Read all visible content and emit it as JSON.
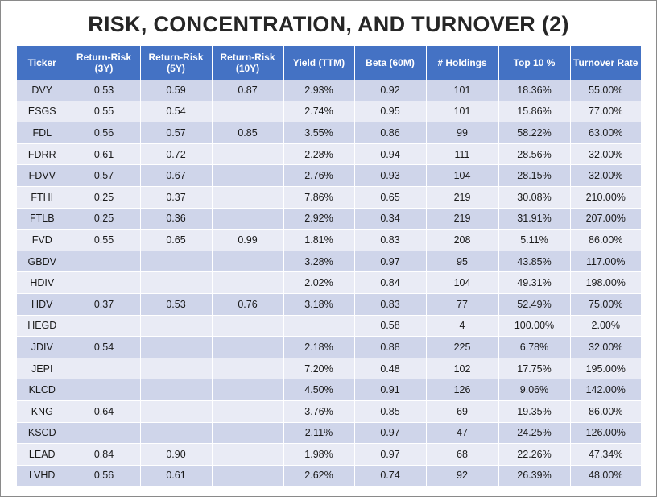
{
  "title": "RISK, CONCENTRATION, AND TURNOVER (2)",
  "table": {
    "headers": [
      {
        "line1": "Ticker",
        "line2": ""
      },
      {
        "line1": "Return-Risk",
        "line2": "(3Y)"
      },
      {
        "line1": "Return-Risk",
        "line2": "(5Y)"
      },
      {
        "line1": "Return-Risk",
        "line2": "(10Y)"
      },
      {
        "line1": "Yield (TTM)",
        "line2": ""
      },
      {
        "line1": "Beta (60M)",
        "line2": ""
      },
      {
        "line1": "# Holdings",
        "line2": ""
      },
      {
        "line1": "Top 10 %",
        "line2": ""
      },
      {
        "line1": "Turnover Rate",
        "line2": ""
      }
    ],
    "rows": [
      [
        "DVY",
        "0.53",
        "0.59",
        "0.87",
        "2.93%",
        "0.92",
        "101",
        "18.36%",
        "55.00%"
      ],
      [
        "ESGS",
        "0.55",
        "0.54",
        "",
        "2.74%",
        "0.95",
        "101",
        "15.86%",
        "77.00%"
      ],
      [
        "FDL",
        "0.56",
        "0.57",
        "0.85",
        "3.55%",
        "0.86",
        "99",
        "58.22%",
        "63.00%"
      ],
      [
        "FDRR",
        "0.61",
        "0.72",
        "",
        "2.28%",
        "0.94",
        "111",
        "28.56%",
        "32.00%"
      ],
      [
        "FDVV",
        "0.57",
        "0.67",
        "",
        "2.76%",
        "0.93",
        "104",
        "28.15%",
        "32.00%"
      ],
      [
        "FTHI",
        "0.25",
        "0.37",
        "",
        "7.86%",
        "0.65",
        "219",
        "30.08%",
        "210.00%"
      ],
      [
        "FTLB",
        "0.25",
        "0.36",
        "",
        "2.92%",
        "0.34",
        "219",
        "31.91%",
        "207.00%"
      ],
      [
        "FVD",
        "0.55",
        "0.65",
        "0.99",
        "1.81%",
        "0.83",
        "208",
        "5.11%",
        "86.00%"
      ],
      [
        "GBDV",
        "",
        "",
        "",
        "3.28%",
        "0.97",
        "95",
        "43.85%",
        "117.00%"
      ],
      [
        "HDIV",
        "",
        "",
        "",
        "2.02%",
        "0.84",
        "104",
        "49.31%",
        "198.00%"
      ],
      [
        "HDV",
        "0.37",
        "0.53",
        "0.76",
        "3.18%",
        "0.83",
        "77",
        "52.49%",
        "75.00%"
      ],
      [
        "HEGD",
        "",
        "",
        "",
        "",
        "0.58",
        "4",
        "100.00%",
        "2.00%"
      ],
      [
        "JDIV",
        "0.54",
        "",
        "",
        "2.18%",
        "0.88",
        "225",
        "6.78%",
        "32.00%"
      ],
      [
        "JEPI",
        "",
        "",
        "",
        "7.20%",
        "0.48",
        "102",
        "17.75%",
        "195.00%"
      ],
      [
        "KLCD",
        "",
        "",
        "",
        "4.50%",
        "0.91",
        "126",
        "9.06%",
        "142.00%"
      ],
      [
        "KNG",
        "0.64",
        "",
        "",
        "3.76%",
        "0.85",
        "69",
        "19.35%",
        "86.00%"
      ],
      [
        "KSCD",
        "",
        "",
        "",
        "2.11%",
        "0.97",
        "47",
        "24.25%",
        "126.00%"
      ],
      [
        "LEAD",
        "0.84",
        "0.90",
        "",
        "1.98%",
        "0.97",
        "68",
        "22.26%",
        "47.34%"
      ],
      [
        "LVHD",
        "0.56",
        "0.61",
        "",
        "2.62%",
        "0.74",
        "92",
        "26.39%",
        "48.00%"
      ]
    ]
  }
}
